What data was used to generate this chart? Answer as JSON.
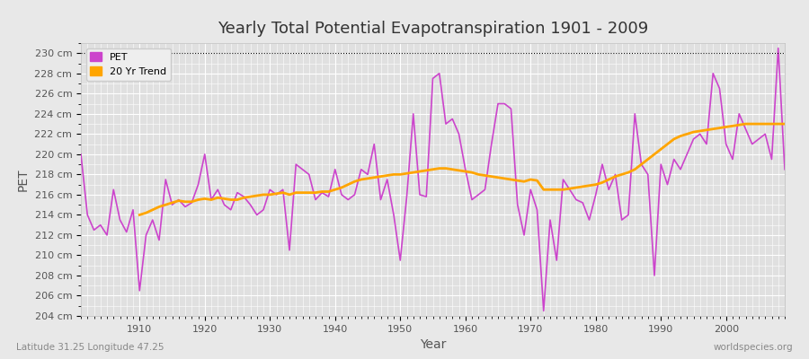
{
  "title": "Yearly Total Potential Evapotranspiration 1901 - 2009",
  "xlabel": "Year",
  "ylabel": "PET",
  "footer_left": "Latitude 31.25 Longitude 47.25",
  "footer_right": "worldspecies.org",
  "bg_color": "#e8e8e8",
  "plot_bg_color": "#e0e0e0",
  "pet_color": "#cc44cc",
  "trend_color": "#ffa500",
  "ylim": [
    204,
    231
  ],
  "ytick_step": 2,
  "years": [
    1901,
    1902,
    1903,
    1904,
    1905,
    1906,
    1907,
    1908,
    1909,
    1910,
    1911,
    1912,
    1913,
    1914,
    1915,
    1916,
    1917,
    1918,
    1919,
    1920,
    1921,
    1922,
    1923,
    1924,
    1925,
    1926,
    1927,
    1928,
    1929,
    1930,
    1931,
    1932,
    1933,
    1934,
    1935,
    1936,
    1937,
    1938,
    1939,
    1940,
    1941,
    1942,
    1943,
    1944,
    1945,
    1946,
    1947,
    1948,
    1949,
    1950,
    1951,
    1952,
    1953,
    1954,
    1955,
    1956,
    1957,
    1958,
    1959,
    1960,
    1961,
    1962,
    1963,
    1964,
    1965,
    1966,
    1967,
    1968,
    1969,
    1970,
    1971,
    1972,
    1973,
    1974,
    1975,
    1976,
    1977,
    1978,
    1979,
    1980,
    1981,
    1982,
    1983,
    1984,
    1985,
    1986,
    1987,
    1988,
    1989,
    1990,
    1991,
    1992,
    1993,
    1994,
    1995,
    1996,
    1997,
    1998,
    1999,
    2000,
    2001,
    2002,
    2003,
    2004,
    2005,
    2006,
    2007,
    2008,
    2009
  ],
  "pet_values": [
    220.0,
    214.0,
    212.5,
    213.0,
    212.0,
    216.5,
    213.5,
    212.3,
    214.5,
    206.5,
    212.0,
    213.5,
    211.5,
    217.5,
    215.0,
    215.5,
    214.8,
    215.2,
    217.0,
    220.0,
    215.5,
    216.5,
    215.0,
    214.5,
    216.2,
    215.8,
    215.0,
    214.0,
    214.5,
    216.5,
    216.0,
    216.5,
    210.5,
    219.0,
    218.5,
    218.0,
    215.5,
    216.2,
    215.8,
    218.5,
    216.0,
    215.5,
    216.0,
    218.5,
    218.0,
    221.0,
    215.5,
    217.5,
    214.0,
    209.5,
    215.8,
    224.0,
    216.0,
    215.8,
    227.5,
    228.0,
    223.0,
    223.5,
    222.0,
    218.5,
    215.5,
    216.0,
    216.5,
    221.0,
    225.0,
    225.0,
    224.5,
    215.0,
    212.0,
    216.5,
    214.5,
    204.5,
    213.5,
    209.5,
    217.5,
    216.5,
    215.5,
    215.2,
    213.5,
    216.0,
    219.0,
    216.5,
    218.0,
    213.5,
    214.0,
    224.0,
    219.0,
    218.0,
    208.0,
    219.0,
    217.0,
    219.5,
    218.5,
    220.0,
    221.5,
    222.0,
    221.0,
    228.0,
    226.5,
    221.0,
    219.5,
    224.0,
    222.5,
    221.0,
    221.5,
    222.0,
    219.5,
    230.5,
    218.5
  ],
  "trend_values": [
    null,
    null,
    null,
    null,
    null,
    null,
    null,
    null,
    null,
    214.0,
    214.2,
    214.5,
    214.8,
    215.0,
    215.2,
    215.4,
    215.3,
    215.3,
    215.5,
    215.6,
    215.5,
    215.7,
    215.6,
    215.5,
    215.5,
    215.7,
    215.8,
    215.9,
    216.0,
    216.0,
    216.1,
    216.2,
    216.0,
    216.2,
    216.2,
    216.2,
    216.2,
    216.3,
    216.3,
    216.5,
    216.7,
    217.0,
    217.3,
    217.5,
    217.6,
    217.7,
    217.8,
    217.9,
    218.0,
    218.0,
    218.1,
    218.2,
    218.3,
    218.4,
    218.5,
    218.6,
    218.6,
    218.5,
    218.4,
    218.3,
    218.2,
    218.0,
    217.9,
    217.8,
    217.7,
    217.6,
    217.5,
    217.4,
    217.3,
    217.5,
    217.4,
    216.5,
    216.5,
    216.5,
    216.5,
    216.6,
    216.7,
    216.8,
    216.9,
    217.0,
    217.2,
    217.5,
    217.8,
    218.0,
    218.2,
    218.5,
    219.0,
    219.5,
    220.0,
    220.5,
    221.0,
    221.5,
    221.8,
    222.0,
    222.2,
    222.3,
    222.4,
    222.5,
    222.6,
    222.7,
    222.8,
    222.9,
    223.0,
    223.0,
    223.0,
    223.0,
    223.0,
    223.0,
    223.0
  ],
  "xticks": [
    1910,
    1920,
    1930,
    1940,
    1950,
    1960,
    1970,
    1980,
    1990,
    2000
  ],
  "legend_labels": [
    "PET",
    "20 Yr Trend"
  ]
}
